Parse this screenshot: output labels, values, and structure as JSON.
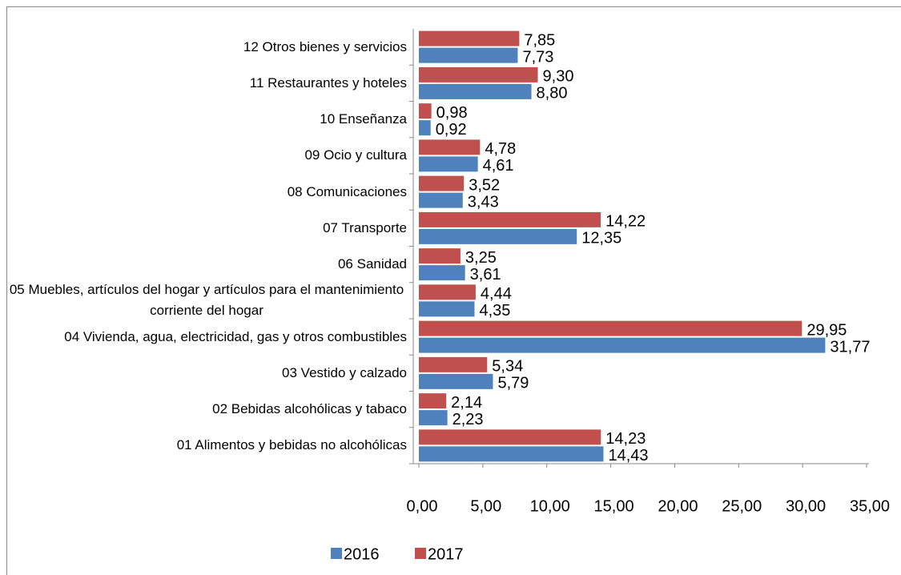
{
  "chart_data": {
    "type": "bar",
    "orientation": "horizontal",
    "categories": [
      "01 Alimentos y bebidas no alcohólicas",
      "02 Bebidas alcohólicas y tabaco",
      "03 Vestido y calzado",
      "04 Vivienda, agua, electricidad, gas y otros combustibles",
      "05 Muebles, artículos del hogar y artículos para el mantenimiento corriente del hogar",
      "06 Sanidad",
      "07 Transporte",
      "08 Comunicaciones",
      "09 Ocio y cultura",
      "10 Enseñanza",
      "11 Restaurantes y hoteles",
      "12 Otros bienes y servicios"
    ],
    "series": [
      {
        "name": "2016",
        "color": "#4f81bd",
        "values": [
          14.43,
          2.23,
          5.79,
          31.77,
          4.35,
          3.61,
          12.35,
          3.43,
          4.61,
          0.92,
          8.8,
          7.73
        ],
        "value_labels": [
          "14,43",
          "2,23",
          "5,79",
          "31,77",
          "4,35",
          "3,61",
          "12,35",
          "3,43",
          "4,61",
          "0,92",
          "8,80",
          "7,73"
        ]
      },
      {
        "name": "2017",
        "color": "#c0504d",
        "values": [
          14.23,
          2.14,
          5.34,
          29.95,
          4.44,
          3.25,
          14.22,
          3.52,
          4.78,
          0.98,
          9.3,
          7.85
        ],
        "value_labels": [
          "14,23",
          "2,14",
          "5,34",
          "29,95",
          "4,44",
          "3,25",
          "14,22",
          "3,52",
          "4,78",
          "0,98",
          "9,30",
          "7,85"
        ]
      }
    ],
    "xlim": [
      0,
      35
    ],
    "xticks": [
      {
        "value": 0,
        "label": "0,00"
      },
      {
        "value": 5,
        "label": "5,00"
      },
      {
        "value": 10,
        "label": "10,00"
      },
      {
        "value": 15,
        "label": "15,00"
      },
      {
        "value": 20,
        "label": "20,00"
      },
      {
        "value": 25,
        "label": "25,00"
      },
      {
        "value": 30,
        "label": "30,00"
      },
      {
        "value": 35,
        "label": "35,00"
      }
    ],
    "legend": "bottom"
  }
}
